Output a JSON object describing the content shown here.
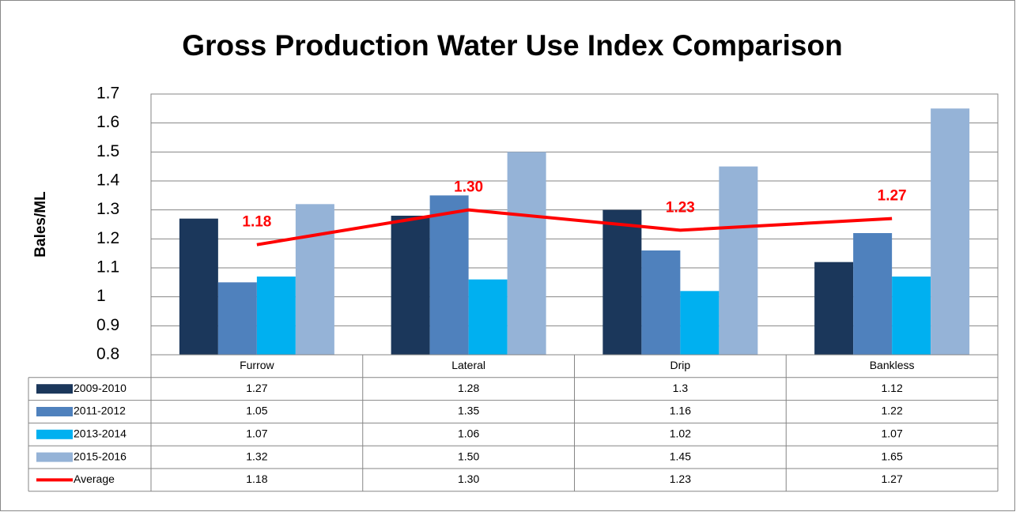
{
  "chart_data": {
    "type": "bar",
    "title": "Gross Production Water Use Index Comparison",
    "y_label": "Bales/ML",
    "categories": [
      "Furrow",
      "Lateral",
      "Drip",
      "Bankless"
    ],
    "ylim": [
      0.8,
      1.7
    ],
    "yticks": [
      0.8,
      0.9,
      1,
      1.1,
      1.2,
      1.3,
      1.4,
      1.5,
      1.6,
      1.7
    ],
    "grid": true,
    "series": [
      {
        "name": "2009-2010",
        "type": "bar",
        "color": "#1b375b",
        "values": [
          1.27,
          1.28,
          1.3,
          1.12
        ]
      },
      {
        "name": "2011-2012",
        "type": "bar",
        "color": "#4f81bd",
        "values": [
          1.05,
          1.35,
          1.16,
          1.22
        ]
      },
      {
        "name": "2013-2014",
        "type": "bar",
        "color": "#00b0f0",
        "values": [
          1.07,
          1.06,
          1.02,
          1.07
        ]
      },
      {
        "name": "2015-2016",
        "type": "bar",
        "color": "#95b3d7",
        "values": [
          1.32,
          1.5,
          1.45,
          1.65
        ],
        "value_labels": [
          "1.32",
          "1.50",
          "1.45",
          "1.65"
        ]
      },
      {
        "name": "Average",
        "type": "line",
        "color": "#ff0000",
        "values": [
          1.18,
          1.3,
          1.23,
          1.27
        ],
        "value_labels": [
          "1.18",
          "1.30",
          "1.23",
          "1.27"
        ]
      }
    ]
  }
}
